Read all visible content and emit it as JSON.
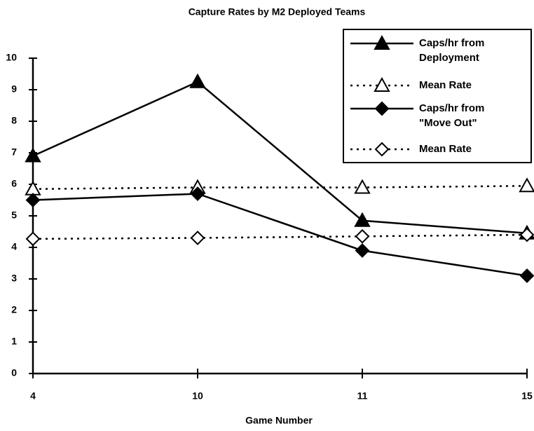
{
  "chart_data": {
    "type": "line",
    "title": "Capture Rates by M2 Deployed Teams",
    "xlabel": "Game Number",
    "categories": [
      "4",
      "10",
      "11",
      "15"
    ],
    "series": [
      {
        "name": "Caps/hr from Deployment",
        "color": "#000000",
        "marker": "triangle",
        "filled": true,
        "dash": "solid",
        "values": [
          6.9,
          9.25,
          4.85,
          4.45
        ]
      },
      {
        "name": "Mean Rate",
        "color": "#000000",
        "marker": "triangle",
        "filled": false,
        "dash": "dotted",
        "values": [
          5.85,
          5.9,
          5.9,
          5.95
        ]
      },
      {
        "name": "Caps/hr from \"Move Out\"",
        "color": "#000000",
        "marker": "diamond",
        "filled": true,
        "dash": "solid",
        "values": [
          5.5,
          5.7,
          3.9,
          3.1
        ]
      },
      {
        "name": "Mean Rate",
        "color": "#000000",
        "marker": "diamond",
        "filled": false,
        "dash": "dotted",
        "values": [
          4.27,
          4.3,
          4.35,
          4.4
        ]
      }
    ],
    "ylim": [
      0,
      10
    ],
    "yticks": [
      0,
      1,
      2,
      3,
      4,
      5,
      6,
      7,
      8,
      9,
      10
    ],
    "legend": "upper right"
  }
}
